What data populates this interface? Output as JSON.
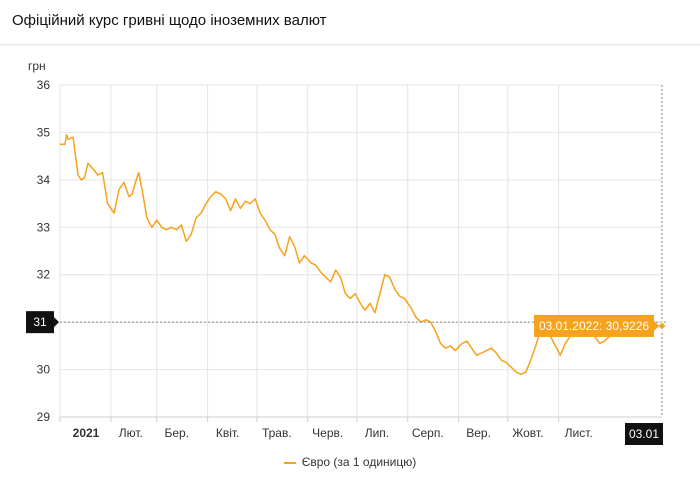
{
  "header": {
    "title": "Офіційний курс гривні щодо іноземних валют"
  },
  "chart_data": {
    "type": "line",
    "ylabel": "грн",
    "ylim": [
      29,
      36
    ],
    "yticks": [
      29,
      30,
      31,
      32,
      33,
      34,
      35,
      36
    ],
    "x_ticks": [
      {
        "label": "2021",
        "date": "2021-01-01",
        "bold": true
      },
      {
        "label": "Лют.",
        "date": "2021-02-01"
      },
      {
        "label": "Бер.",
        "date": "2021-03-01"
      },
      {
        "label": "Квіт.",
        "date": "2021-04-01"
      },
      {
        "label": "Трав.",
        "date": "2021-05-01"
      },
      {
        "label": "Черв.",
        "date": "2021-06-01"
      },
      {
        "label": "Лип.",
        "date": "2021-07-01"
      },
      {
        "label": "Серп.",
        "date": "2021-08-01"
      },
      {
        "label": "Вер.",
        "date": "2021-09-01"
      },
      {
        "label": "Жовт.",
        "date": "2021-10-01"
      },
      {
        "label": "Лист.",
        "date": "2021-11-01"
      }
    ],
    "x_range": [
      "2021-01-01",
      "2022-01-03"
    ],
    "series": [
      {
        "name": "Євро (за 1 одиницю)",
        "color": "#f7a21b",
        "x": [
          "2021-01-01",
          "2021-01-04",
          "2021-01-05",
          "2021-01-06",
          "2021-01-09",
          "2021-01-12",
          "2021-01-14",
          "2021-01-16",
          "2021-01-18",
          "2021-01-22",
          "2021-01-24",
          "2021-01-27",
          "2021-01-30",
          "2021-02-03",
          "2021-02-06",
          "2021-02-09",
          "2021-02-12",
          "2021-02-14",
          "2021-02-16",
          "2021-02-18",
          "2021-02-20",
          "2021-02-23",
          "2021-02-26",
          "2021-03-01",
          "2021-03-04",
          "2021-03-07",
          "2021-03-10",
          "2021-03-13",
          "2021-03-16",
          "2021-03-19",
          "2021-03-22",
          "2021-03-25",
          "2021-03-28",
          "2021-03-31",
          "2021-04-03",
          "2021-04-06",
          "2021-04-09",
          "2021-04-12",
          "2021-04-15",
          "2021-04-18",
          "2021-04-21",
          "2021-04-24",
          "2021-04-27",
          "2021-04-30",
          "2021-05-03",
          "2021-05-06",
          "2021-05-09",
          "2021-05-12",
          "2021-05-15",
          "2021-05-18",
          "2021-05-21",
          "2021-05-24",
          "2021-05-27",
          "2021-05-30",
          "2021-06-03",
          "2021-06-06",
          "2021-06-09",
          "2021-06-12",
          "2021-06-15",
          "2021-06-18",
          "2021-06-21",
          "2021-06-24",
          "2021-06-27",
          "2021-06-30",
          "2021-07-03",
          "2021-07-06",
          "2021-07-09",
          "2021-07-12",
          "2021-07-15",
          "2021-07-18",
          "2021-07-21",
          "2021-07-24",
          "2021-07-27",
          "2021-07-30",
          "2021-08-03",
          "2021-08-06",
          "2021-08-09",
          "2021-08-12",
          "2021-08-15",
          "2021-08-18",
          "2021-08-21",
          "2021-08-24",
          "2021-08-27",
          "2021-08-30",
          "2021-09-03",
          "2021-09-06",
          "2021-09-09",
          "2021-09-12",
          "2021-09-15",
          "2021-09-18",
          "2021-09-21",
          "2021-09-24",
          "2021-09-27",
          "2021-09-30",
          "2021-10-03",
          "2021-10-06",
          "2021-10-09",
          "2021-10-12",
          "2021-10-15",
          "2021-10-18",
          "2021-10-21",
          "2021-10-24",
          "2021-10-27",
          "2021-10-30",
          "2021-11-02",
          "2021-11-05",
          "2021-11-08",
          "2021-11-11",
          "2021-11-14",
          "2021-11-17",
          "2021-11-20",
          "2021-11-23",
          "2021-11-26",
          "2021-11-29",
          "2021-12-02",
          "2021-12-05",
          "2021-12-08",
          "2021-12-11",
          "2021-12-14",
          "2021-12-17",
          "2021-12-20",
          "2021-12-23",
          "2021-12-26",
          "2021-12-29",
          "2022-01-01",
          "2022-01-03"
        ],
        "values": [
          34.75,
          34.75,
          34.95,
          34.85,
          34.9,
          34.1,
          34.0,
          34.05,
          34.35,
          34.2,
          34.1,
          34.15,
          33.5,
          33.3,
          33.8,
          33.95,
          33.65,
          33.7,
          33.95,
          34.15,
          33.8,
          33.2,
          33.0,
          33.15,
          33.0,
          32.95,
          33.0,
          32.95,
          33.05,
          32.7,
          32.85,
          33.2,
          33.3,
          33.5,
          33.65,
          33.75,
          33.7,
          33.6,
          33.35,
          33.6,
          33.4,
          33.55,
          33.5,
          33.6,
          33.3,
          33.15,
          32.95,
          32.85,
          32.55,
          32.4,
          32.8,
          32.6,
          32.25,
          32.4,
          32.25,
          32.2,
          32.05,
          31.95,
          31.85,
          32.1,
          31.95,
          31.6,
          31.5,
          31.6,
          31.4,
          31.25,
          31.4,
          31.2,
          31.6,
          32.0,
          31.95,
          31.7,
          31.55,
          31.5,
          31.3,
          31.1,
          31.0,
          31.05,
          31.0,
          30.8,
          30.55,
          30.45,
          30.5,
          30.4,
          30.55,
          30.6,
          30.45,
          30.3,
          30.35,
          30.4,
          30.45,
          30.35,
          30.2,
          30.15,
          30.05,
          29.95,
          29.9,
          29.95,
          30.2,
          30.5,
          30.85,
          30.95,
          30.7,
          30.5,
          30.3,
          30.55,
          30.7,
          30.85,
          30.92,
          30.95,
          30.9,
          30.7,
          30.55,
          30.6,
          30.7,
          30.8,
          30.85,
          30.9,
          30.95,
          30.9,
          30.85,
          30.9,
          30.92,
          30.95,
          30.9,
          30.92
        ]
      }
    ],
    "crosshair": {
      "date_label": "03.01",
      "value_label": "31",
      "value": 31
    },
    "tooltip": "03.01.2022: 30,9226",
    "grid": true,
    "legend": "bottom-center"
  }
}
